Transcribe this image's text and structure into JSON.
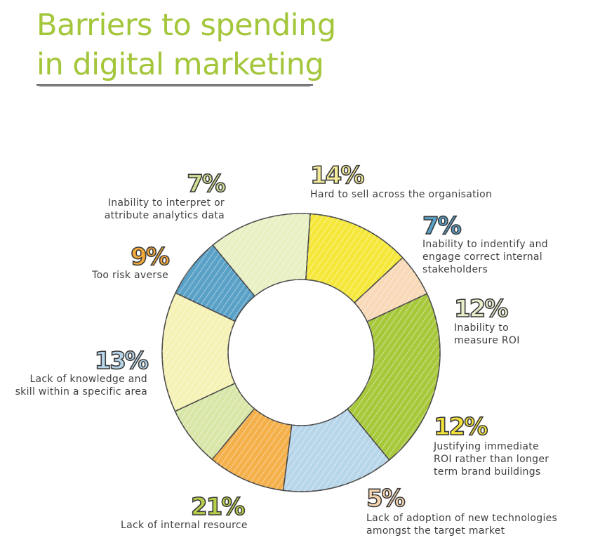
{
  "title_line1": "Barriers to spending",
  "title_line2": "in digital marketing",
  "chart_data": {
    "type": "pie",
    "variant": "donut",
    "title": "Barriers to spending in digital marketing",
    "unit": "%",
    "slices": [
      {
        "pct": "14%",
        "value": 14,
        "label": "Hard to sell across the organisation",
        "color": "#f6f2b6"
      },
      {
        "pct": "7%",
        "value": 7,
        "label": "Inability to indentify and engage correct internal stakeholders",
        "color": "#5aa1c8"
      },
      {
        "pct": "12%",
        "value": 12,
        "label": "Inability to measure ROI",
        "color": "#e8f0c4"
      },
      {
        "pct": "12%",
        "value": 12,
        "label": "Justifying immediate ROI rather than longer term brand buildings",
        "color": "#f5e83a"
      },
      {
        "pct": "5%",
        "value": 5,
        "label": "Lack of adoption of new technologies amongst the target market",
        "color": "#f8d9b8"
      },
      {
        "pct": "21%",
        "value": 21,
        "label": "Lack of internal resource",
        "color": "#a8c83c"
      },
      {
        "pct": "13%",
        "value": 13,
        "label": "Lack of knowledge and skill within a specific area",
        "color": "#b8d6ea"
      },
      {
        "pct": "9%",
        "value": 9,
        "label": "Too risk averse",
        "color": "#f4b04a"
      },
      {
        "pct": "7%",
        "value": 7,
        "label": "Inability to interpret or attribute analytics data",
        "color": "#d8e6a8"
      }
    ],
    "pct_colors": [
      "#f3ea9a",
      "#5aa1c8",
      "#e9f0cc",
      "#f2e23a",
      "#f7d6b0",
      "#b7d04a",
      "#b8d6ea",
      "#f4a93a",
      "#cfe094"
    ]
  }
}
